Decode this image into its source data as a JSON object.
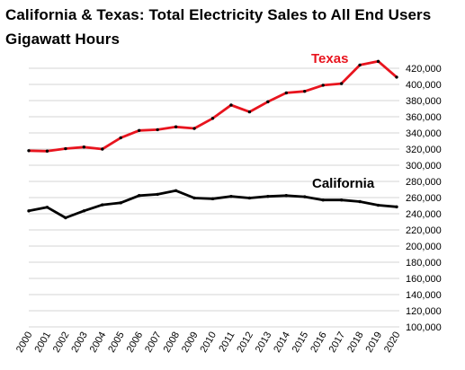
{
  "chart_data": {
    "type": "line",
    "title": "California & Texas: Total Electricity Sales to All End Users",
    "subtitle": "Gigawatt Hours",
    "categories": [
      "2000",
      "2001",
      "2002",
      "2003",
      "2004",
      "2005",
      "2006",
      "2007",
      "2008",
      "2009",
      "2010",
      "2011",
      "2012",
      "2013",
      "2014",
      "2015",
      "2016",
      "2017",
      "2018",
      "2019",
      "2020"
    ],
    "series": [
      {
        "name": "Texas",
        "color": "#e8141e",
        "values": [
          318000,
          317500,
          320500,
          322500,
          320000,
          334000,
          343000,
          344000,
          347500,
          345500,
          358000,
          374500,
          366000,
          378500,
          389500,
          391500,
          399000,
          401000,
          424000,
          428500,
          409000
        ]
      },
      {
        "name": "California",
        "color": "#000000",
        "values": [
          243500,
          248000,
          235000,
          243500,
          251000,
          253500,
          262500,
          264000,
          268500,
          259500,
          258500,
          261500,
          259500,
          261500,
          262500,
          261000,
          257000,
          257000,
          255000,
          250500,
          248500
        ]
      }
    ],
    "y_ticks": [
      "100,000",
      "120,000",
      "140,000",
      "160,000",
      "180,000",
      "200,000",
      "220,000",
      "240,000",
      "260,000",
      "280,000",
      "300,000",
      "320,000",
      "340,000",
      "360,000",
      "380,000",
      "400,000",
      "420,000"
    ],
    "ylim": [
      100000,
      420000
    ],
    "y_axis_position": "right",
    "grid": true,
    "marker_color": "#000000"
  }
}
